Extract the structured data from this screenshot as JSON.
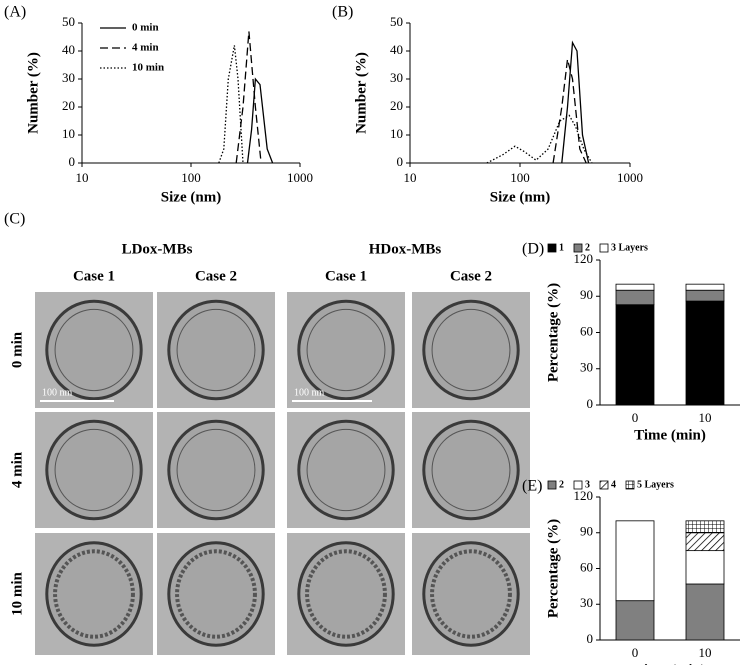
{
  "chart_data": [
    {
      "type": "line",
      "panel": "(A)",
      "xlabel": "Size (nm)",
      "ylabel": "Number (%)",
      "xscale": "log",
      "xlim": [
        10,
        1000
      ],
      "xticks": [
        10,
        100,
        1000
      ],
      "ylim": [
        0,
        50
      ],
      "yticks": [
        0,
        10,
        20,
        30,
        40,
        50
      ],
      "legend": "upper left",
      "series": [
        {
          "name": "0 min",
          "color": "#000000",
          "dash": "solid",
          "x": [
            330,
            360,
            390,
            430,
            500,
            560
          ],
          "values": [
            0,
            12,
            30,
            28,
            5,
            0
          ]
        },
        {
          "name": "4 min",
          "color": "#000000",
          "dash": "dashed",
          "x": [
            260,
            300,
            340,
            390,
            440
          ],
          "values": [
            0,
            20,
            47,
            20,
            0
          ]
        },
        {
          "name": "10 min",
          "color": "#000000",
          "dash": "dotted",
          "x": [
            180,
            200,
            220,
            250,
            270,
            300
          ],
          "values": [
            0,
            5,
            30,
            42,
            30,
            0
          ]
        }
      ]
    },
    {
      "type": "line",
      "panel": "(B)",
      "xlabel": "Size (nm)",
      "ylabel": "Number (%)",
      "xscale": "log",
      "xlim": [
        10,
        1000
      ],
      "xticks": [
        10,
        100,
        1000
      ],
      "ylim": [
        0,
        50
      ],
      "yticks": [
        0,
        10,
        20,
        30,
        40,
        50
      ],
      "series": [
        {
          "color": "#000000",
          "dash": "solid",
          "x": [
            240,
            270,
            300,
            330,
            370,
            420
          ],
          "values": [
            0,
            20,
            43,
            40,
            10,
            0
          ]
        },
        {
          "color": "#000000",
          "dash": "dashed",
          "x": [
            200,
            240,
            270,
            300,
            350,
            400
          ],
          "values": [
            0,
            20,
            37,
            30,
            5,
            0
          ]
        },
        {
          "color": "#000000",
          "dash": "dotted",
          "x": [
            50,
            70,
            90,
            110,
            140,
            180,
            230,
            280,
            320,
            380,
            450
          ],
          "values": [
            0,
            3,
            6,
            4,
            1,
            5,
            15,
            17,
            13,
            5,
            0
          ]
        }
      ]
    },
    {
      "type": "stacked_bar",
      "panel": "(D)",
      "xlabel": "Time (min)",
      "ylabel": "Percentage (%)",
      "categories": [
        "0",
        "10"
      ],
      "ylim": [
        0,
        120
      ],
      "yticks": [
        0,
        30,
        60,
        90,
        120
      ],
      "legend": "top",
      "series": [
        {
          "name": "1",
          "color": "#000000",
          "values": [
            83,
            86
          ]
        },
        {
          "name": "2",
          "color": "#808080",
          "values": [
            12,
            9
          ]
        },
        {
          "name": "3 Layers",
          "color": "#ffffff",
          "values": [
            5,
            5
          ]
        }
      ]
    },
    {
      "type": "stacked_bar",
      "panel": "(E)",
      "xlabel": "Time (min)",
      "ylabel": "Percentage (%)",
      "categories": [
        "0",
        "10"
      ],
      "ylim": [
        0,
        120
      ],
      "yticks": [
        0,
        30,
        60,
        90,
        120
      ],
      "legend": "top",
      "series": [
        {
          "name": "2",
          "color": "#808080",
          "values": [
            33,
            47
          ]
        },
        {
          "name": "3",
          "color": "#ffffff",
          "values": [
            67,
            28
          ]
        },
        {
          "name": "4",
          "color": "#ffffff",
          "pattern": "diagonal",
          "values": [
            0,
            15
          ]
        },
        {
          "name": "5 Layers",
          "color": "#ffffff",
          "pattern": "grid",
          "values": [
            0,
            10
          ]
        }
      ]
    }
  ],
  "micrographs": {
    "panel": "(C)",
    "groups": [
      "LDox-MBs",
      "HDox-MBs"
    ],
    "columns": [
      "Case 1",
      "Case 2",
      "Case 1",
      "Case 2"
    ],
    "rows": [
      "0 min",
      "4 min",
      "10 min"
    ],
    "scale_bar": "100 nm"
  }
}
